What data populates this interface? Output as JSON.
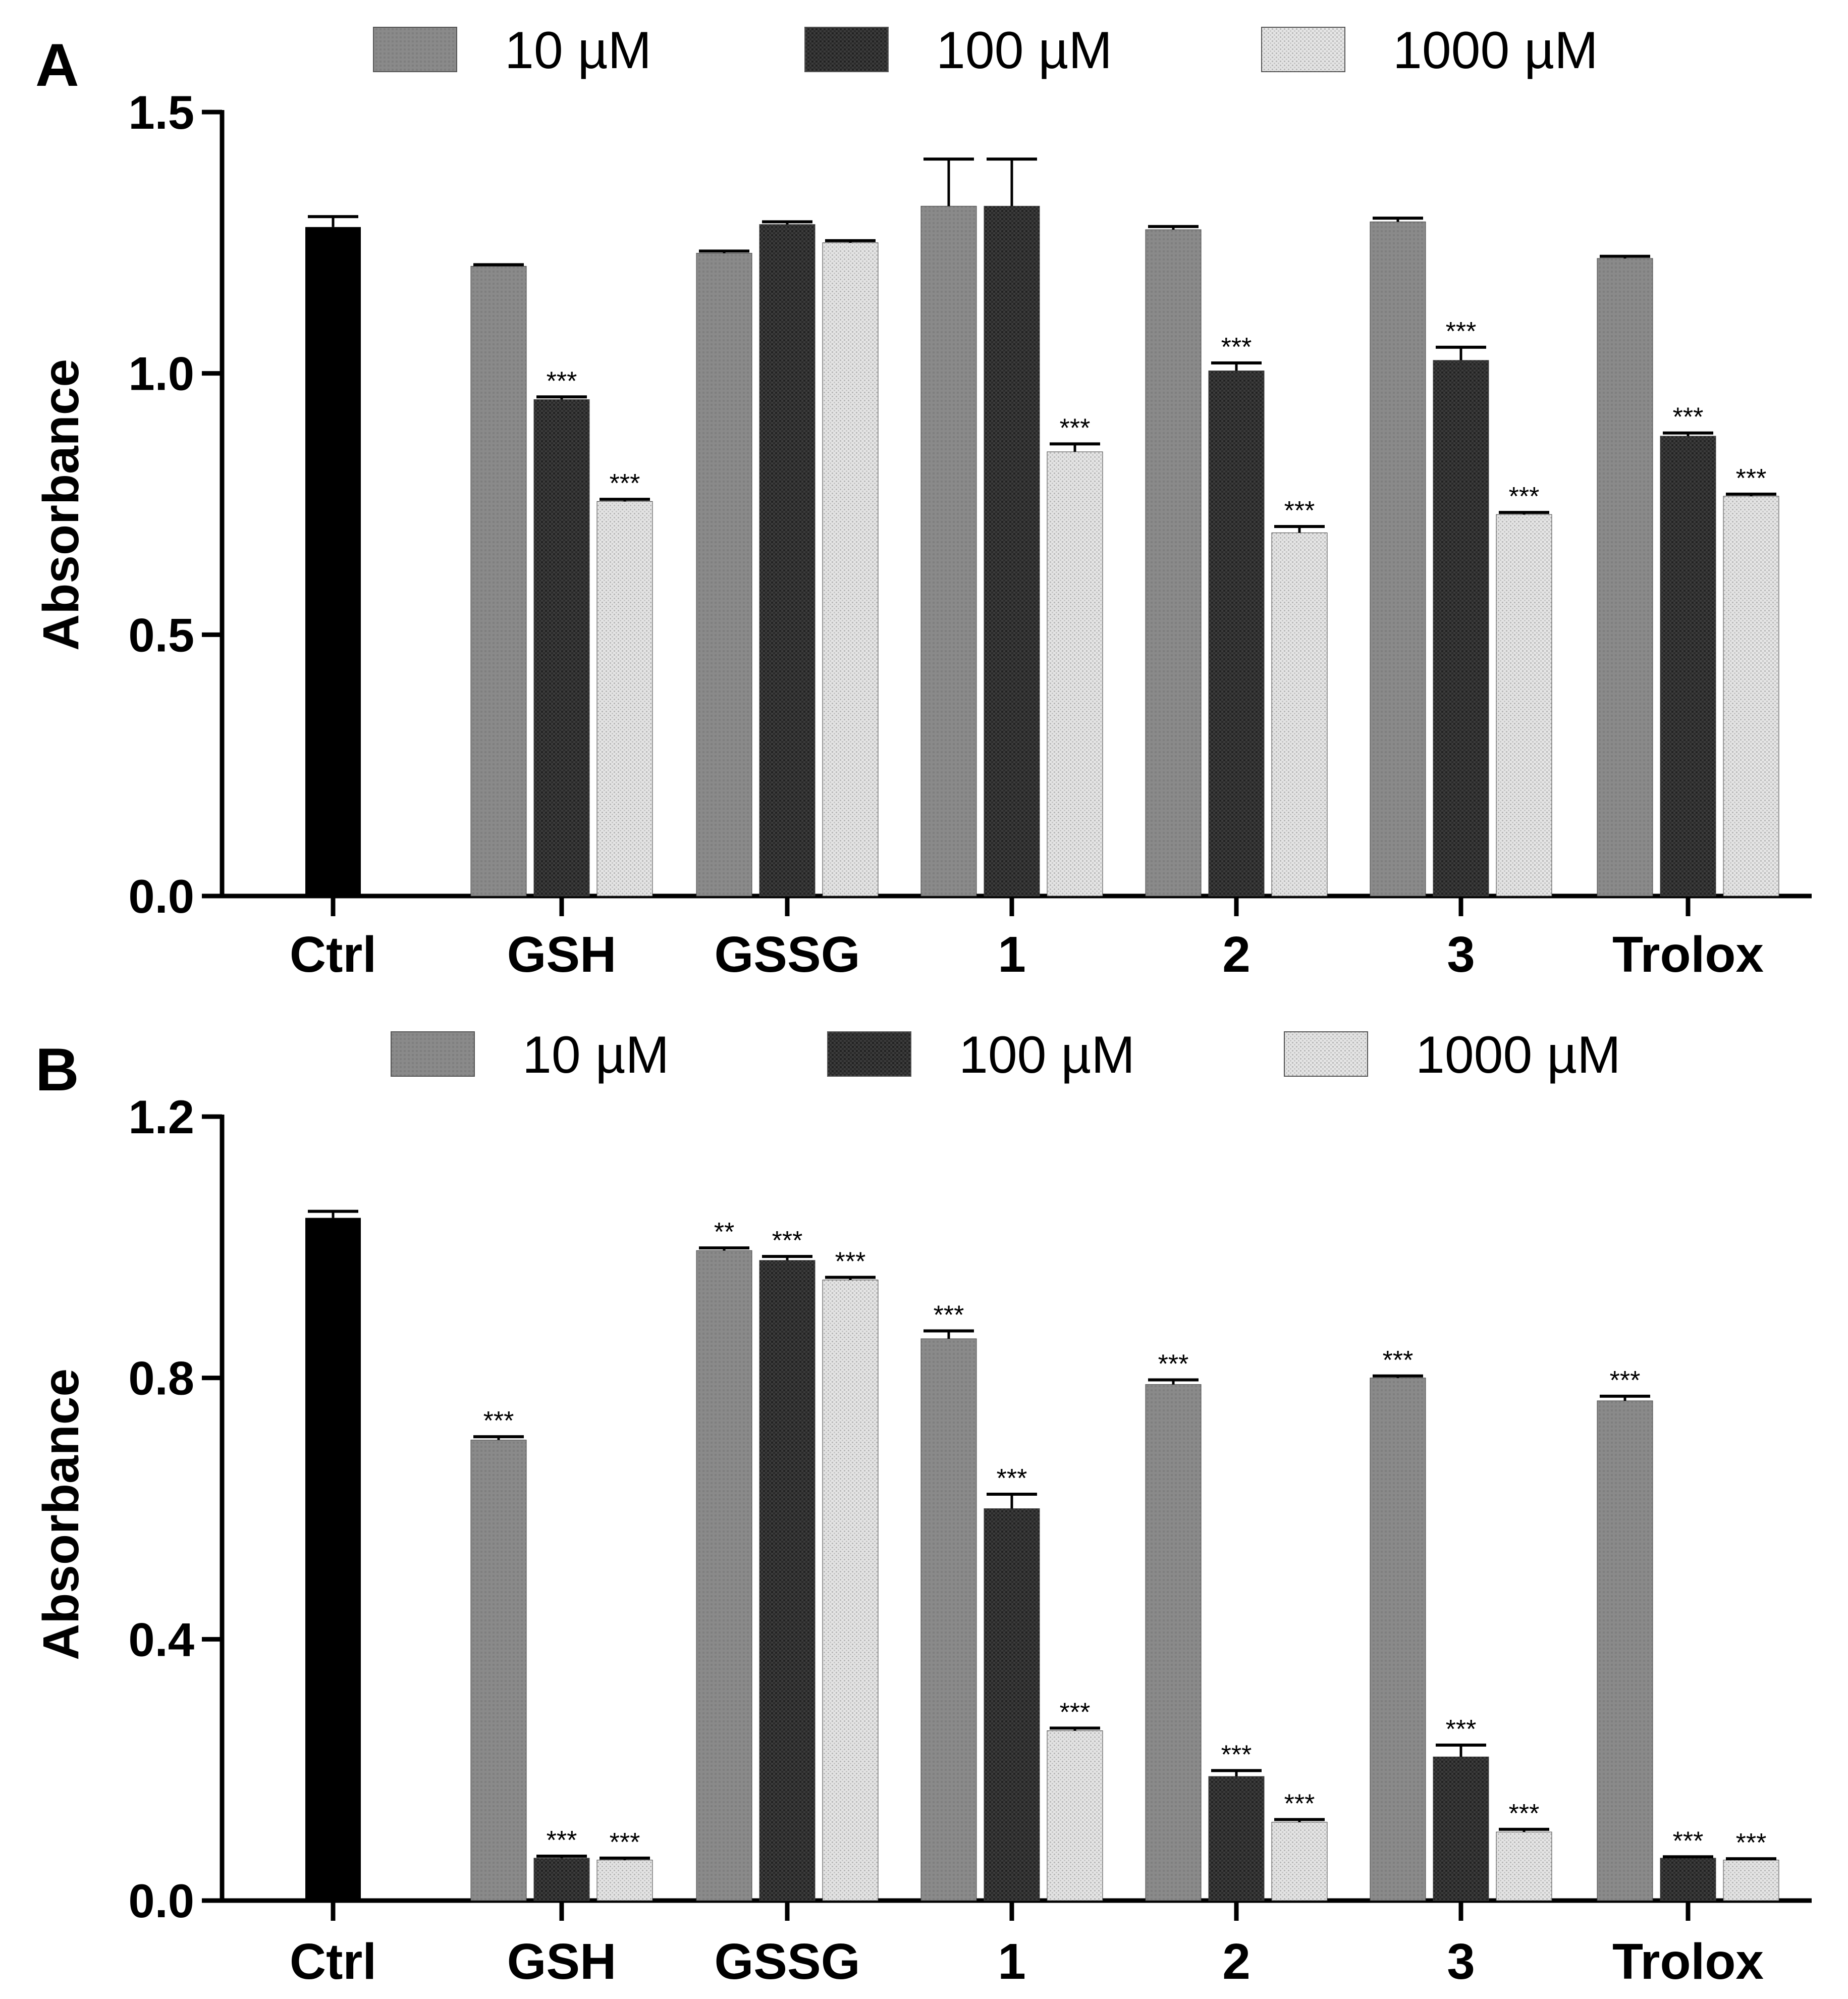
{
  "chart_data": [
    {
      "panel": "A",
      "type": "bar",
      "ylabel": "Absorbance",
      "ylim": [
        0,
        1.5
      ],
      "yticks": [
        "0.0",
        "0.5",
        "1.0",
        "1.5"
      ],
      "categories": [
        "Ctrl",
        "GSH",
        "GSSG",
        "1",
        "2",
        "3",
        "Trolox"
      ],
      "control": {
        "category": "Ctrl",
        "value": 1.28,
        "error": 0.02
      },
      "legend": [
        "10 µM",
        "100 µM",
        "1000 µM"
      ],
      "series": [
        {
          "name": "10 µM",
          "values": [
            null,
            1.205,
            1.23,
            1.32,
            1.275,
            1.29,
            1.22
          ],
          "errors": [
            null,
            0.003,
            0.004,
            0.09,
            0.006,
            0.007,
            0.004
          ],
          "sig": [
            null,
            "",
            "",
            "",
            "",
            "",
            ""
          ]
        },
        {
          "name": "100 µM",
          "values": [
            null,
            0.95,
            1.285,
            1.32,
            1.005,
            1.025,
            0.88
          ],
          "errors": [
            null,
            0.005,
            0.005,
            0.09,
            0.015,
            0.025,
            0.006
          ],
          "sig": [
            null,
            "***",
            "",
            "",
            "***",
            "***",
            "***"
          ]
        },
        {
          "name": "1000 µM",
          "values": [
            null,
            0.755,
            1.25,
            0.85,
            0.695,
            0.73,
            0.765
          ],
          "errors": [
            null,
            0.004,
            0.004,
            0.015,
            0.012,
            0.004,
            0.004
          ],
          "sig": [
            null,
            "***",
            "",
            "***",
            "***",
            "***",
            "***"
          ]
        }
      ]
    },
    {
      "panel": "B",
      "type": "bar",
      "ylabel": "Absorbance",
      "ylim": [
        0,
        1.2
      ],
      "yticks": [
        "0.0",
        "0.4",
        "0.8",
        "1.2"
      ],
      "categories": [
        "Ctrl",
        "GSH",
        "GSSG",
        "1",
        "2",
        "3",
        "Trolox"
      ],
      "control": {
        "category": "Ctrl",
        "value": 1.045,
        "error": 0.01
      },
      "legend": [
        "10 µM",
        "100 µM",
        "1000 µM"
      ],
      "series": [
        {
          "name": "10 µM",
          "values": [
            null,
            0.705,
            0.995,
            0.86,
            0.79,
            0.8,
            0.765
          ],
          "errors": [
            null,
            0.005,
            0.004,
            0.012,
            0.007,
            0.003,
            0.007
          ],
          "sig": [
            null,
            "***",
            "**",
            "***",
            "***",
            "***",
            "***"
          ]
        },
        {
          "name": "100 µM",
          "values": [
            null,
            0.065,
            0.98,
            0.6,
            0.19,
            0.22,
            0.065
          ],
          "errors": [
            null,
            0.003,
            0.006,
            0.022,
            0.009,
            0.018,
            0.002
          ],
          "sig": [
            null,
            "***",
            "***",
            "***",
            "***",
            "***",
            "***"
          ]
        },
        {
          "name": "1000 µM",
          "values": [
            null,
            0.062,
            0.95,
            0.26,
            0.12,
            0.105,
            0.062
          ],
          "errors": [
            null,
            0.003,
            0.004,
            0.004,
            0.004,
            0.004,
            0.002
          ],
          "sig": [
            null,
            "***",
            "***",
            "***",
            "***",
            "***",
            "***"
          ]
        }
      ]
    }
  ],
  "colors": {
    "ctrl": "#000000",
    "s10": "#8a8a8a",
    "s100": "#3a3a3a",
    "s1000": "#dedede",
    "axis": "#000000"
  }
}
